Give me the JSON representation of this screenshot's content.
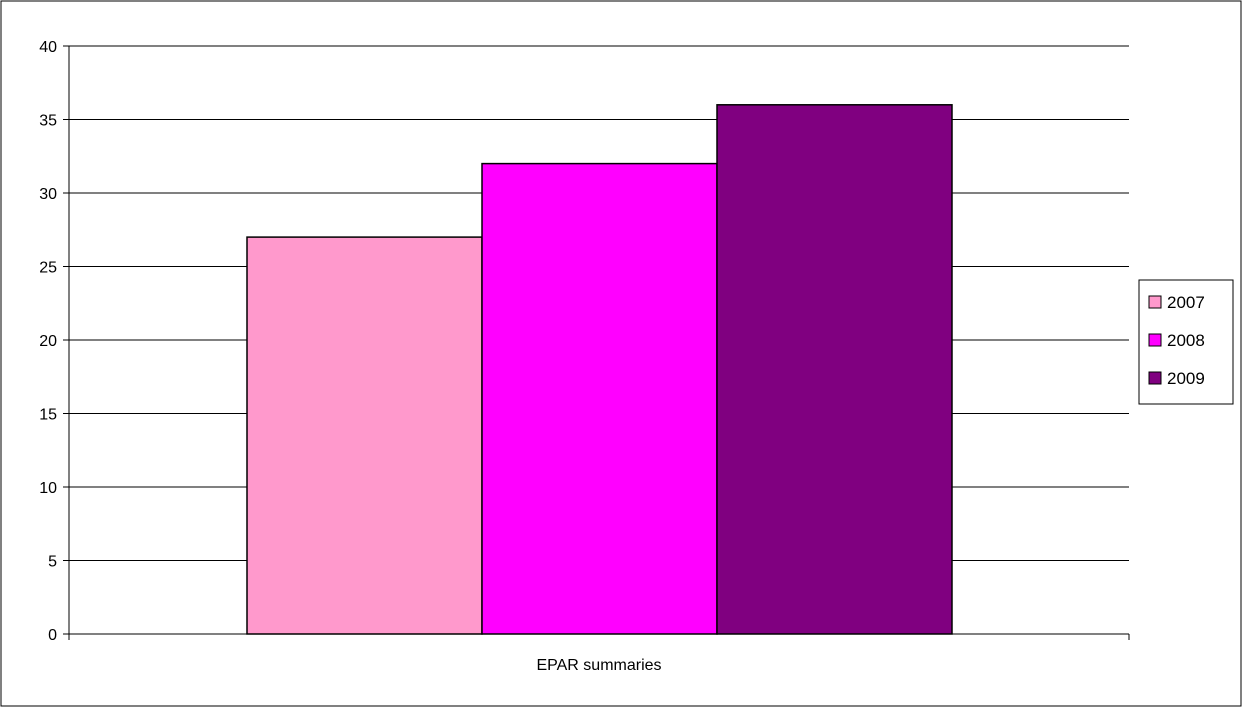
{
  "chart_data": {
    "type": "bar",
    "title": "",
    "xlabel": "",
    "ylabel": "",
    "categories": [
      "EPAR summaries"
    ],
    "series": [
      {
        "name": "2007",
        "values": [
          27
        ],
        "color": "#FF99CC"
      },
      {
        "name": "2008",
        "values": [
          32
        ],
        "color": "#FF00FF"
      },
      {
        "name": "2009",
        "values": [
          36
        ],
        "color": "#800080"
      }
    ],
    "ylim": [
      0,
      40
    ],
    "yticks": [
      0,
      5,
      10,
      15,
      20,
      25,
      30,
      35,
      40
    ],
    "grid": true,
    "legend_position": "right"
  }
}
